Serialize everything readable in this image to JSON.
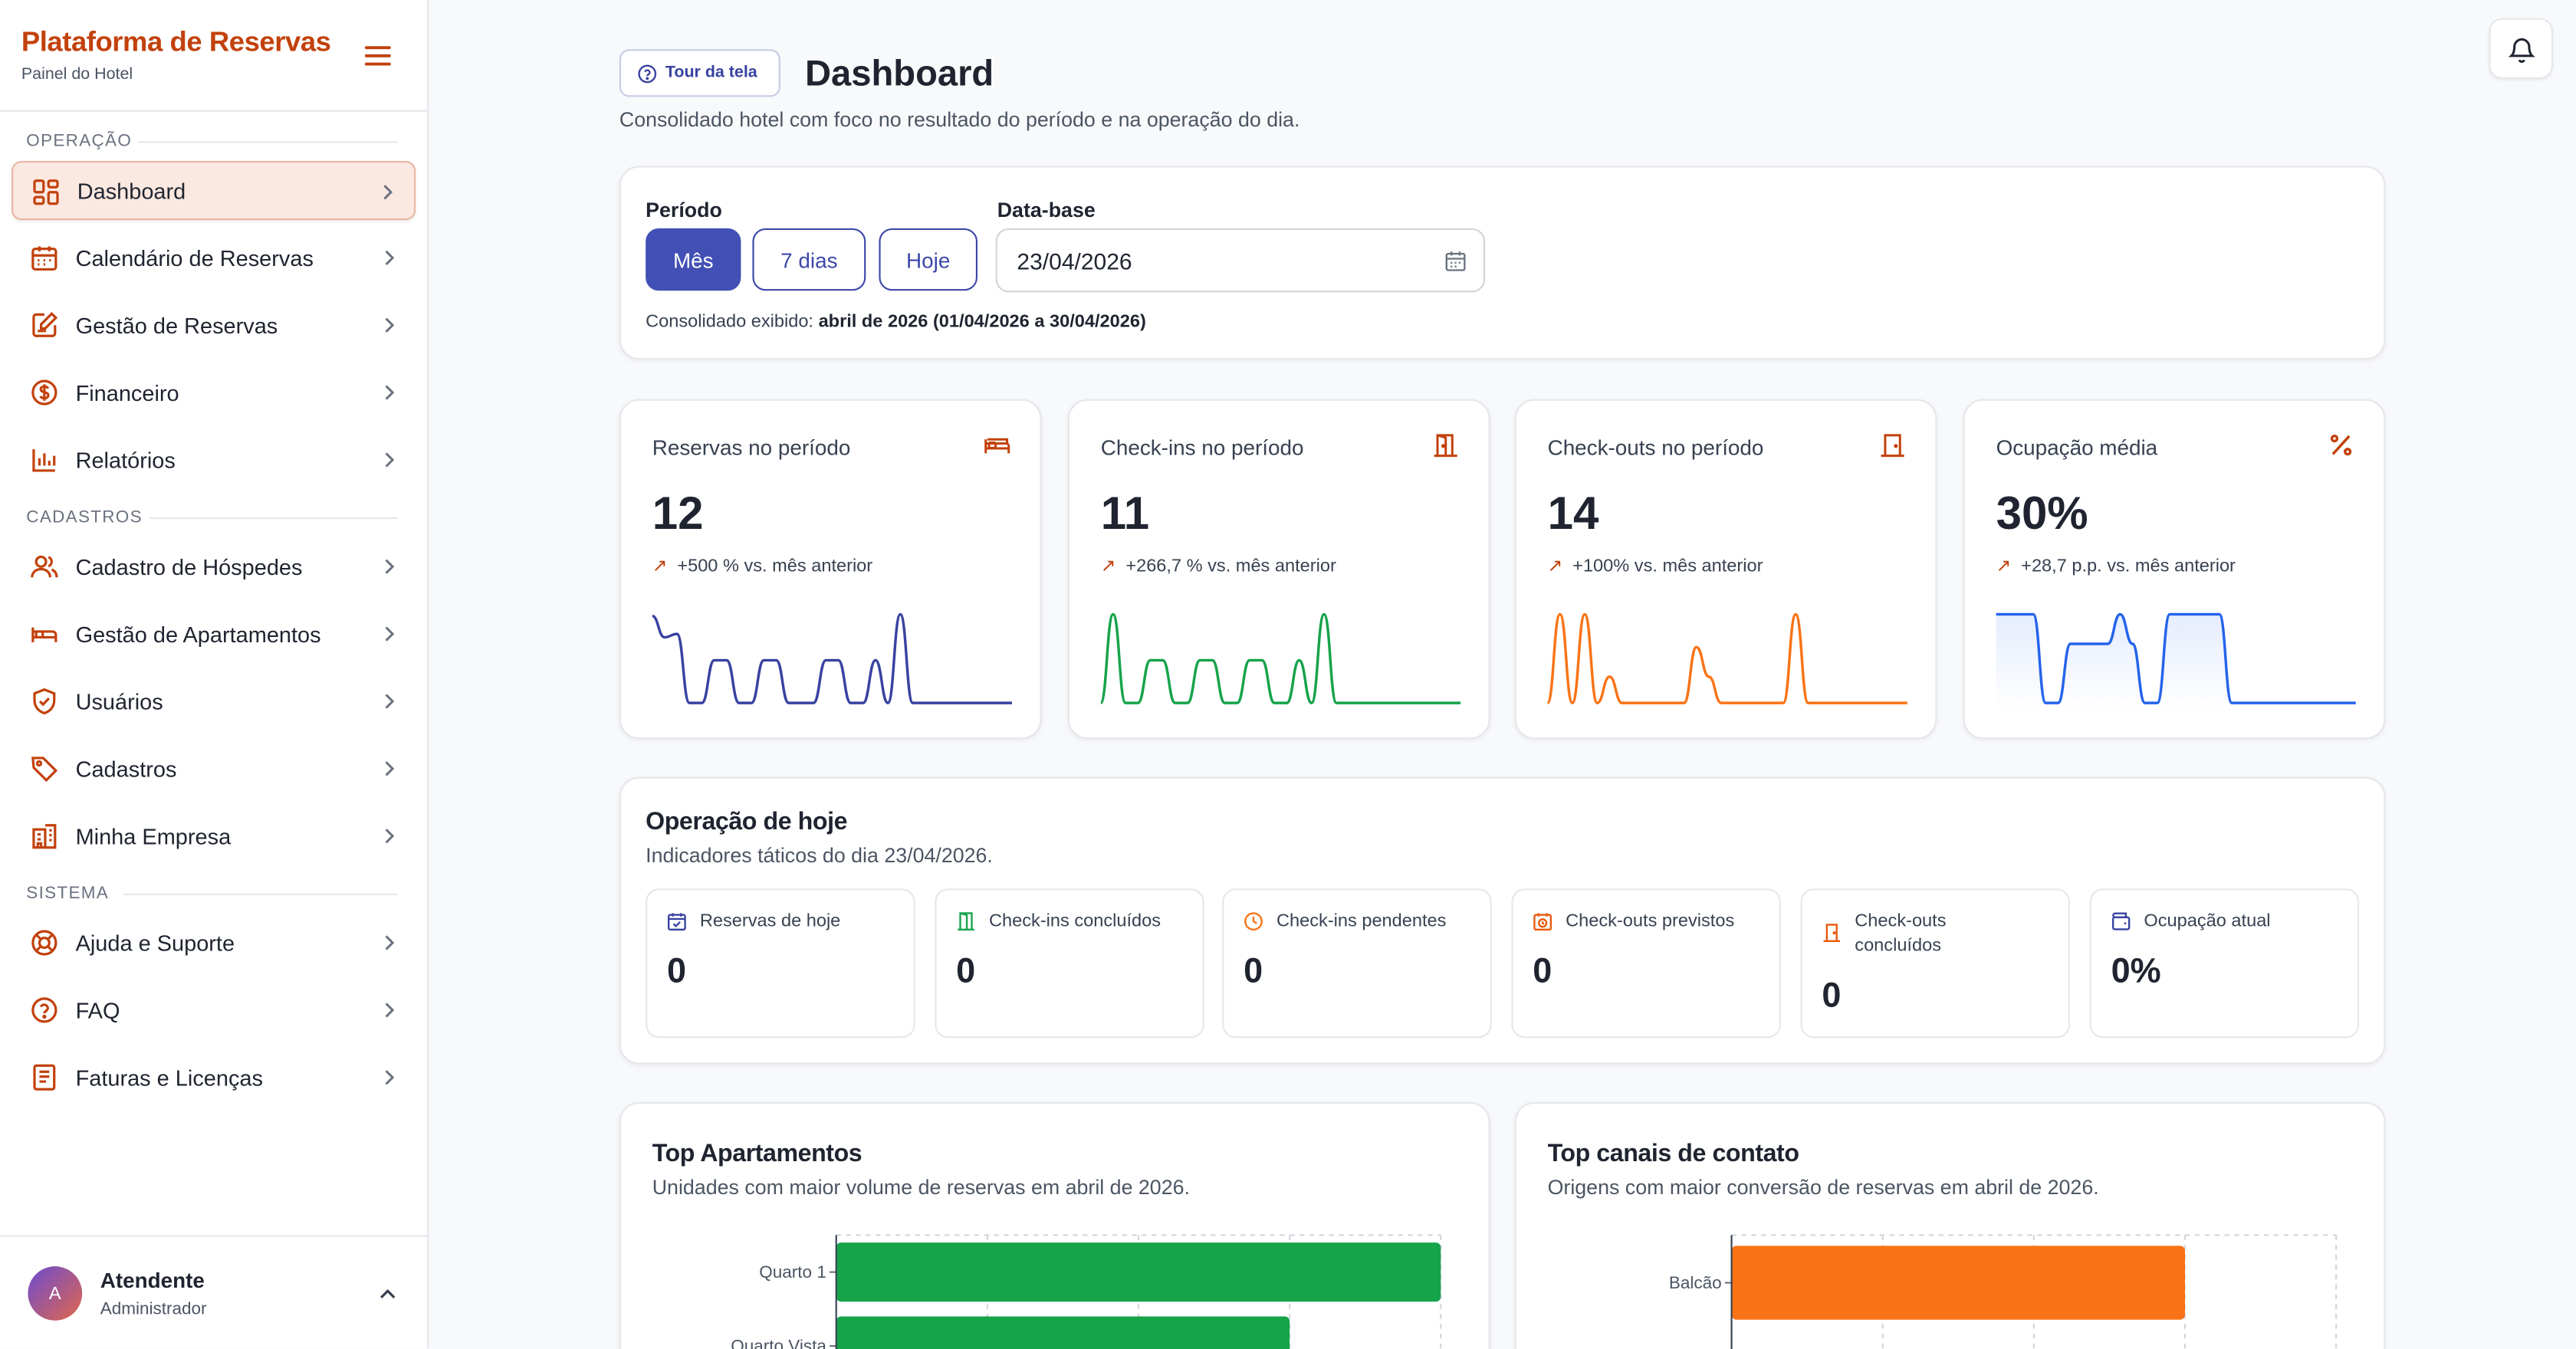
{
  "sidebar": {
    "brand_title": "Plataforma de Reservas",
    "brand_subtitle": "Painel do Hotel",
    "sections": {
      "operacao": "OPERAÇÃO",
      "cadastros": "CADASTROS",
      "sistema": "SISTEMA"
    },
    "items": [
      {
        "label": "Dashboard",
        "icon": "dashboard-grid-icon",
        "active": true
      },
      {
        "label": "Calendário de Reservas",
        "icon": "calendar-icon"
      },
      {
        "label": "Gestão de Reservas",
        "icon": "edit-list-icon"
      },
      {
        "label": "Financeiro",
        "icon": "dollar-icon"
      },
      {
        "label": "Relatórios",
        "icon": "bar-chart-icon"
      },
      {
        "label": "Cadastro de Hóspedes",
        "icon": "users-icon"
      },
      {
        "label": "Gestão de Apartamentos",
        "icon": "bed-icon"
      },
      {
        "label": "Usuários",
        "icon": "shield-check-icon"
      },
      {
        "label": "Cadastros",
        "icon": "tag-icon"
      },
      {
        "label": "Minha Empresa",
        "icon": "building-icon"
      },
      {
        "label": "Ajuda e Suporte",
        "icon": "lifebuoy-icon"
      },
      {
        "label": "FAQ",
        "icon": "question-circle-icon"
      },
      {
        "label": "Faturas e Licenças",
        "icon": "invoice-icon"
      }
    ],
    "user": {
      "initial": "A",
      "name": "Atendente",
      "role": "Administrador"
    }
  },
  "header": {
    "tour_label": "Tour da tela",
    "title": "Dashboard",
    "subtitle": "Consolidado hotel com foco no resultado do período e na operação do dia."
  },
  "filters": {
    "period_label": "Período",
    "options": [
      "Mês",
      "7 dias",
      "Hoje"
    ],
    "selected": "Mês",
    "date_label": "Data-base",
    "date_value": "23/04/2026",
    "consolidated_prefix": "Consolidado exibido:",
    "consolidated_value": "abril de 2026 (01/04/2026 a 30/04/2026)"
  },
  "kpis": [
    {
      "title": "Reservas no período",
      "value": "12",
      "trend": "+500 % vs. mês anterior",
      "icon": "bed-icon",
      "color": "#3842a0",
      "spark": [
        55,
        42,
        44,
        2,
        2,
        28,
        28,
        2,
        2,
        28,
        28,
        2,
        2,
        2,
        28,
        28,
        2,
        2,
        28,
        2,
        56,
        2,
        2,
        2,
        2,
        2,
        2,
        2,
        2,
        2
      ]
    },
    {
      "title": "Check-ins no período",
      "value": "11",
      "trend": "+266,7 % vs. mês anterior",
      "icon": "door-open-icon",
      "color": "#16a34a",
      "spark": [
        2,
        56,
        2,
        2,
        28,
        28,
        2,
        2,
        28,
        28,
        2,
        2,
        28,
        28,
        2,
        2,
        28,
        2,
        56,
        2,
        2,
        2,
        2,
        2,
        2,
        2,
        2,
        2,
        2,
        2
      ]
    },
    {
      "title": "Check-outs no período",
      "value": "14",
      "trend": "+100% vs. mês anterior",
      "icon": "door-closed-icon",
      "color": "#f97316",
      "spark": [
        2,
        56,
        2,
        56,
        2,
        18,
        2,
        2,
        2,
        2,
        2,
        2,
        36,
        18,
        2,
        2,
        2,
        2,
        2,
        2,
        56,
        2,
        2,
        2,
        2,
        2,
        2,
        2,
        2,
        2
      ]
    },
    {
      "title": "Ocupação média",
      "value": "30%",
      "trend": "+28,7 p.p. vs. mês anterior",
      "icon": "percent-icon",
      "color": "#2563eb",
      "spark": [
        56,
        56,
        56,
        56,
        2,
        2,
        38,
        38,
        38,
        38,
        56,
        38,
        2,
        2,
        56,
        56,
        56,
        56,
        56,
        2,
        2,
        2,
        2,
        2,
        2,
        2,
        2,
        2,
        2,
        2
      ]
    }
  ],
  "today": {
    "title": "Operação de hoje",
    "subtitle": "Indicadores táticos do dia 23/04/2026.",
    "items": [
      {
        "label": "Reservas de hoje",
        "value": "0",
        "icon": "calendar-check-icon",
        "icon_color": "#3842a0"
      },
      {
        "label": "Check-ins concluídos",
        "value": "0",
        "icon": "door-open-icon",
        "icon_color": "#16a34a"
      },
      {
        "label": "Check-ins pendentes",
        "value": "0",
        "icon": "clock-icon",
        "icon_color": "#f97316"
      },
      {
        "label": "Check-outs previstos",
        "value": "0",
        "icon": "calendar-clock-icon",
        "icon_color": "#ea580c"
      },
      {
        "label": "Check-outs concluídos",
        "value": "0",
        "icon": "door-closed-icon",
        "icon_color": "#ea580c"
      },
      {
        "label": "Ocupação atual",
        "value": "0%",
        "icon": "wallet-icon",
        "icon_color": "#3842a0"
      }
    ]
  },
  "top_apartments": {
    "title": "Top Apartamentos",
    "subtitle": "Unidades com maior volume de reservas em abril de 2026."
  },
  "top_channels": {
    "title": "Top canais de contato",
    "subtitle": "Origens com maior conversão de reservas em abril de 2026."
  },
  "chart_data": [
    {
      "type": "bar",
      "orientation": "horizontal",
      "categories": [
        "Quarto 1",
        "Quarto Vista"
      ],
      "values": [
        4,
        3
      ],
      "xlim": [
        0,
        4
      ],
      "color": "#16a34a",
      "grid": true
    },
    {
      "type": "bar",
      "orientation": "horizontal",
      "categories": [
        "Balcão"
      ],
      "values": [
        3
      ],
      "xlim": [
        0,
        4
      ],
      "color": "#f97316",
      "grid": true
    }
  ]
}
